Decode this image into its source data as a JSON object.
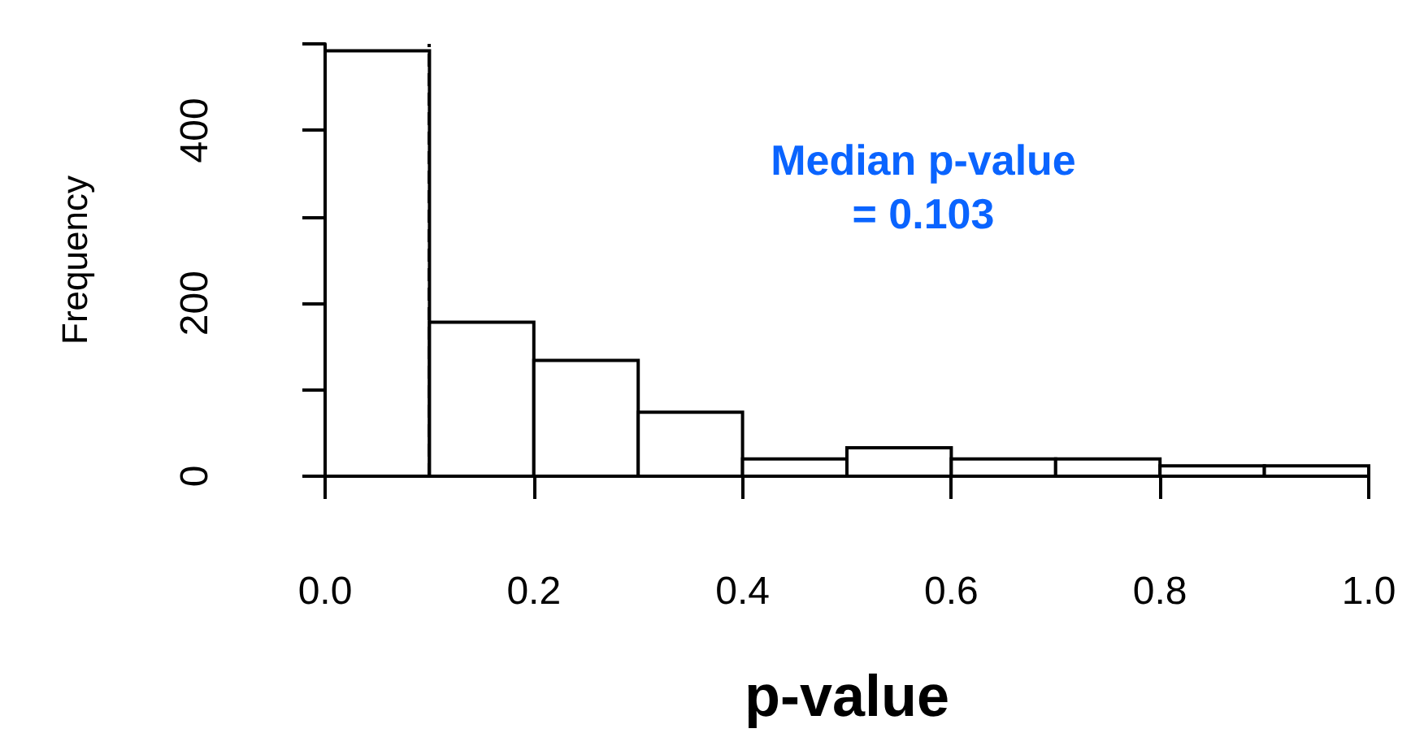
{
  "chart_data": {
    "type": "histogram",
    "xlabel": "p-value",
    "ylabel": "Frequency",
    "bins": [
      0,
      0.1,
      0.2,
      0.3,
      0.4,
      0.5,
      0.6,
      0.7,
      0.8,
      0.9,
      1.0
    ],
    "values": [
      492,
      178,
      134,
      74,
      20,
      33,
      20,
      20,
      12,
      12
    ],
    "color": "#ffffff",
    "xlim": [
      0,
      1
    ],
    "xticks": [
      {
        "value": 0,
        "label": "0.0"
      },
      0.2,
      0.4,
      0.6,
      0.8,
      {
        "value": 1,
        "label": "1.0"
      }
    ],
    "ylim": [
      0,
      500
    ],
    "yticks": [
      0,
      {
        "value": 100,
        "label": null
      },
      200,
      {
        "value": 300,
        "label": null
      },
      400,
      {
        "value": 500,
        "label": null
      }
    ],
    "ref_lines": [
      {
        "axis": "x",
        "value": 0.103,
        "line_style": "dashed",
        "color": "#000000"
      }
    ],
    "annotations": [
      "Median p-value\n= 0.103"
    ],
    "grid": false
  }
}
